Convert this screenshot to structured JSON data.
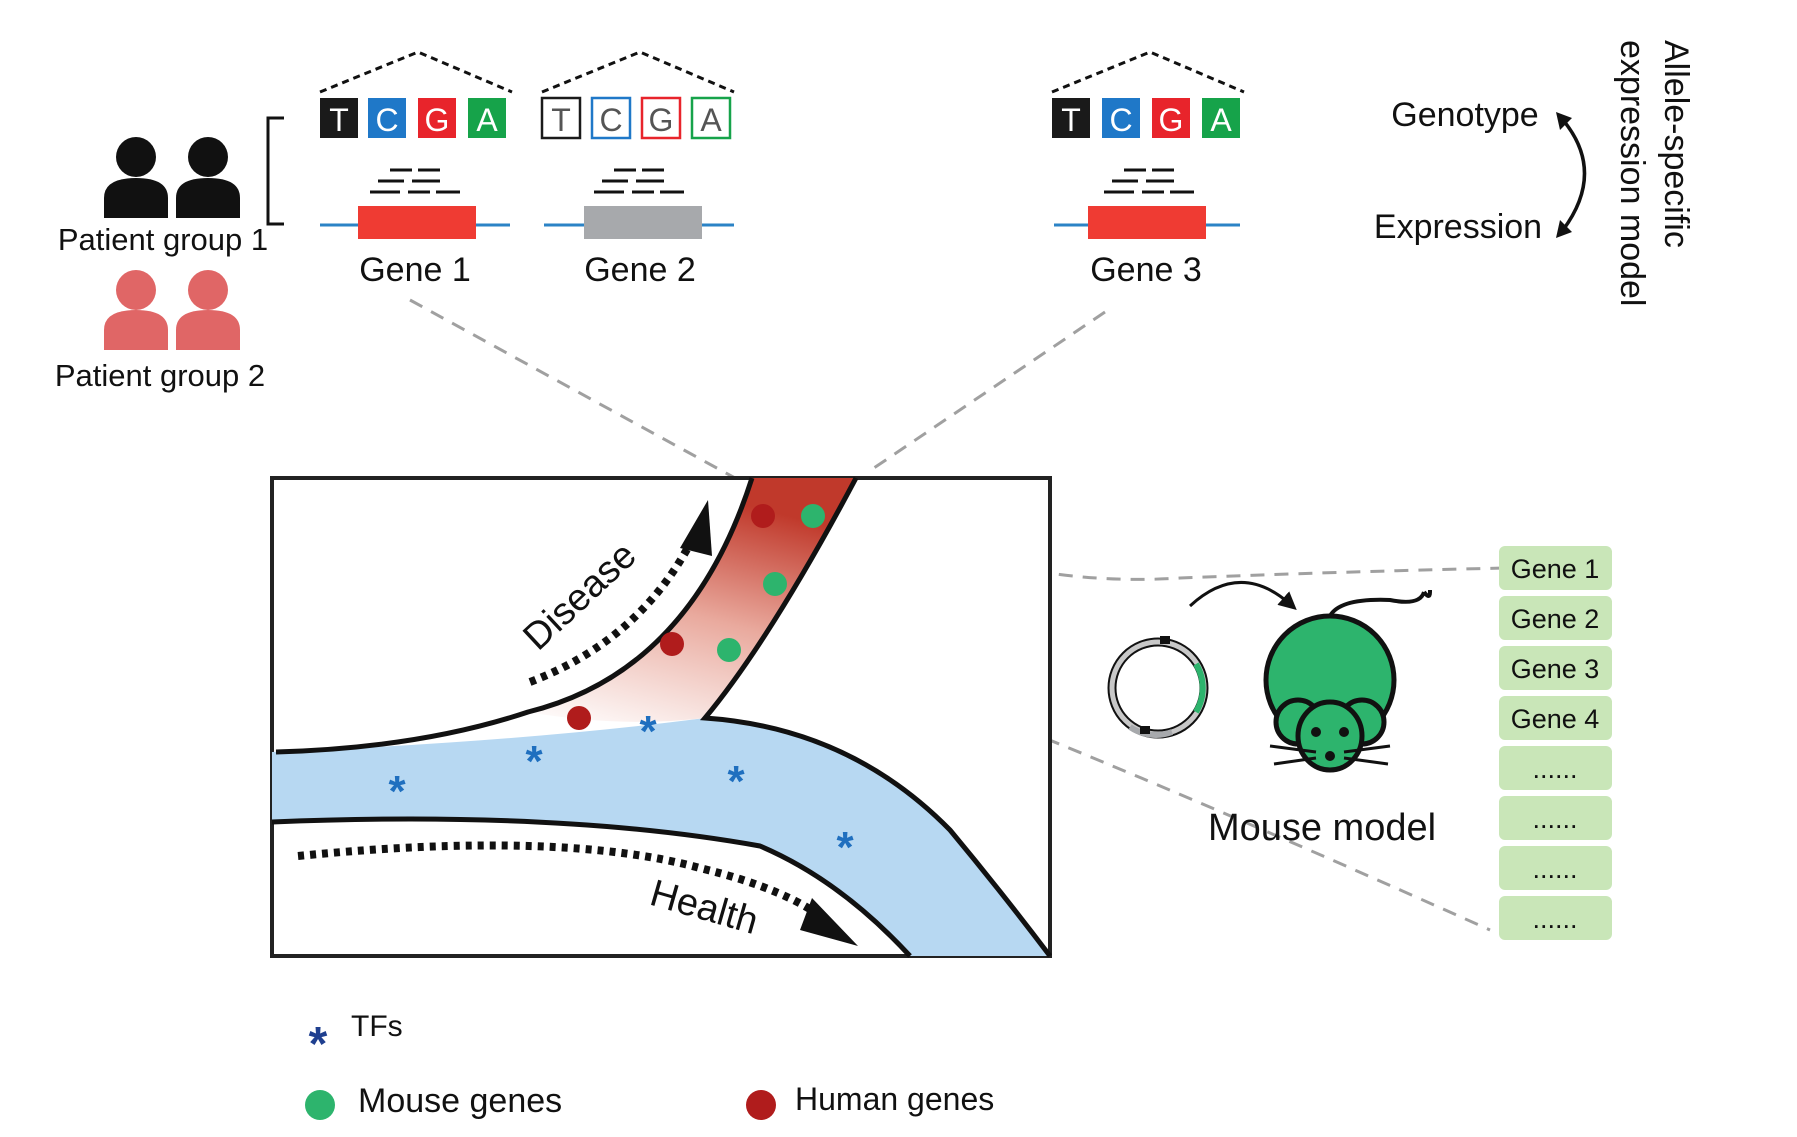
{
  "patients": {
    "group1_label": "Patient group 1",
    "group2_label": "Patient group 2"
  },
  "bases": [
    "T",
    "C",
    "G",
    "A"
  ],
  "genes_top": [
    {
      "label": "Gene 1",
      "style": "filled",
      "exon": "red"
    },
    {
      "label": "Gene 2",
      "style": "outline",
      "exon": "gray"
    },
    {
      "label": "Gene 3",
      "style": "filled",
      "exon": "red"
    }
  ],
  "model": {
    "genotype": "Genotype",
    "expression": "Expression",
    "title_line1": "Allele-specific",
    "title_line2": "expression model"
  },
  "trajectory": {
    "disease_label": "Disease",
    "health_label": "Health"
  },
  "mouse": {
    "label": "Mouse model"
  },
  "gene_list": [
    "Gene 1",
    "Gene 2",
    "Gene 3",
    "Gene 4",
    "......",
    "......",
    "......",
    "......"
  ],
  "legend": {
    "tfs": "TFs",
    "mouse_genes": "Mouse genes",
    "human_genes": "Human genes"
  },
  "colors": {
    "base_T": "#1a1a1a",
    "base_C": "#1f78c8",
    "base_G": "#e8242b",
    "base_A": "#16a34a",
    "exon_red": "#ef3b33",
    "exon_gray": "#a7a9ac",
    "line_blue": "#2b83c6",
    "group2": "#e06666",
    "health_band": "#b7d8f2",
    "disease_band": "#c0392b",
    "mouse_green": "#2db46d",
    "human_red": "#b01c1c",
    "tf_blue": "#1f6fbf",
    "gene_box": "#c9e6b8"
  }
}
